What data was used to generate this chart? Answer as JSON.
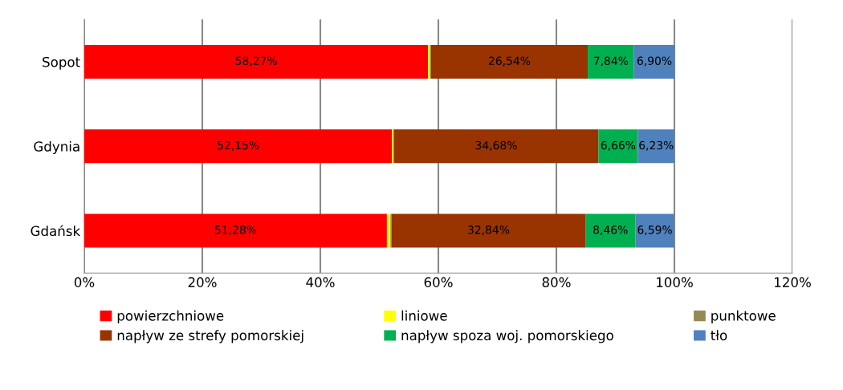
{
  "chart_data": {
    "type": "bar",
    "orientation": "horizontal",
    "stacked": true,
    "categories": [
      "Sopot",
      "Gdynia",
      "Gdańsk"
    ],
    "series": [
      {
        "name": "powierzchniowe",
        "color": "#ff0000",
        "values": [
          58.27,
          52.15,
          51.28
        ],
        "value_labels": [
          "58,27%",
          "52,15%",
          "51,28%"
        ]
      },
      {
        "name": "liniowe",
        "color": "#ffff00",
        "values": [
          0.3,
          0.2,
          0.6
        ],
        "value_labels": [
          null,
          null,
          null
        ]
      },
      {
        "name": "punktowe",
        "color": "#948a54",
        "values": [
          0.2,
          0.1,
          0.2
        ],
        "value_labels": [
          null,
          null,
          null
        ]
      },
      {
        "name": "napływ ze strefy pomorskiej",
        "color": "#993300",
        "values": [
          26.54,
          34.68,
          32.84
        ],
        "value_labels": [
          "26,54%",
          "34,68%",
          "32,84%"
        ]
      },
      {
        "name": "napływ spoza woj. pomorskiego",
        "color": "#00b050",
        "values": [
          7.84,
          6.66,
          8.46
        ],
        "value_labels": [
          "7,84%",
          "6,66%",
          "8,46%"
        ]
      },
      {
        "name": "tło",
        "color": "#4f81bd",
        "values": [
          6.9,
          6.23,
          6.59
        ],
        "value_labels": [
          "6,90%",
          "6,23%",
          "6,59%"
        ]
      }
    ],
    "xlim": [
      0,
      120
    ],
    "xticks": [
      {
        "value": 0,
        "label": "0%"
      },
      {
        "value": 20,
        "label": "20%"
      },
      {
        "value": 40,
        "label": "40%"
      },
      {
        "value": 60,
        "label": "60%"
      },
      {
        "value": 80,
        "label": "80%"
      },
      {
        "value": 100,
        "label": "100%"
      },
      {
        "value": 120,
        "label": "120%"
      }
    ],
    "grid": "x",
    "legend": "bottom"
  }
}
